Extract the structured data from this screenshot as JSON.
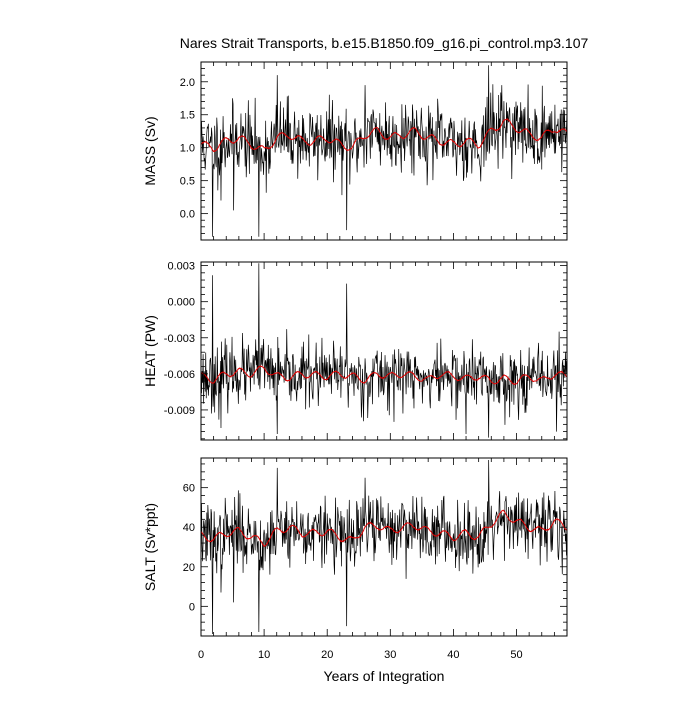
{
  "chart_data": {
    "type": "line",
    "title": "Nares Strait Transports, b.e15.B1850.f09_g16.pi_control.mp3.107",
    "xlabel": "Years of Integration",
    "xlim": [
      0,
      58
    ],
    "x_ticks": [
      0,
      10,
      20,
      30,
      40,
      50
    ],
    "x_tick_labels": [
      "0",
      "10",
      "20",
      "30",
      "40",
      "50"
    ],
    "panels": [
      {
        "ylabel": "MASS (Sv)",
        "ylim": [
          -0.4,
          2.3
        ],
        "y_ticks": [
          0.0,
          0.5,
          1.0,
          1.5,
          2.0
        ],
        "y_tick_labels": [
          "0.0",
          "0.5",
          "1.0",
          "1.5",
          "2.0"
        ],
        "smooth_anchors_x": [
          0,
          2,
          4,
          6,
          8,
          10,
          12,
          14,
          16,
          18,
          20,
          22,
          24,
          26,
          28,
          30,
          32,
          34,
          36,
          38,
          40,
          42,
          44,
          46,
          48,
          50,
          52,
          54,
          56,
          58
        ],
        "smooth_anchors_y": [
          1.05,
          1.0,
          1.1,
          1.15,
          1.05,
          0.95,
          1.15,
          1.2,
          1.1,
          1.1,
          1.15,
          1.05,
          1.0,
          1.2,
          1.25,
          1.15,
          1.2,
          1.25,
          1.15,
          1.1,
          1.05,
          1.1,
          1.05,
          1.25,
          1.4,
          1.3,
          1.2,
          1.15,
          1.3,
          1.2
        ],
        "noise_sd": 0.27,
        "spikes": [
          [
            1.8,
            -0.35
          ],
          [
            9.2,
            -0.35
          ],
          [
            12.1,
            2.1
          ],
          [
            23.1,
            -0.25
          ],
          [
            45.6,
            2.25
          ],
          [
            3.2,
            0.2
          ],
          [
            5.2,
            0.05
          ],
          [
            26.0,
            1.95
          ]
        ],
        "seed": 11
      },
      {
        "ylabel": "HEAT (PW)",
        "ylim": [
          -0.0115,
          0.0033
        ],
        "y_ticks": [
          -0.009,
          -0.006,
          -0.003,
          0.0,
          0.003
        ],
        "y_tick_labels": [
          "-0.009",
          "-0.006",
          "-0.003",
          "0.000",
          "0.003"
        ],
        "smooth_anchors_x": [
          0,
          2,
          4,
          6,
          8,
          10,
          12,
          14,
          16,
          18,
          20,
          22,
          24,
          26,
          28,
          30,
          32,
          34,
          36,
          38,
          40,
          42,
          44,
          46,
          48,
          50,
          52,
          54,
          56,
          58
        ],
        "smooth_anchors_y": [
          -0.0062,
          -0.0065,
          -0.006,
          -0.0058,
          -0.006,
          -0.0055,
          -0.0062,
          -0.0063,
          -0.006,
          -0.0061,
          -0.0062,
          -0.006,
          -0.0062,
          -0.0065,
          -0.006,
          -0.0062,
          -0.006,
          -0.0062,
          -0.0065,
          -0.006,
          -0.0062,
          -0.0064,
          -0.0062,
          -0.0066,
          -0.0064,
          -0.0066,
          -0.0062,
          -0.0066,
          -0.006,
          -0.0062
        ],
        "noise_sd": 0.0013,
        "spikes": [
          [
            1.8,
            0.0022
          ],
          [
            9.2,
            0.0032
          ],
          [
            12.1,
            -0.011
          ],
          [
            23.1,
            0.0015
          ],
          [
            45.6,
            -0.0113
          ],
          [
            3.2,
            -0.0105
          ],
          [
            42.0,
            -0.011
          ],
          [
            56.3,
            -0.0108
          ]
        ],
        "seed": 23
      },
      {
        "ylabel": "SALT (Sv*ppt)",
        "ylim": [
          -15,
          75
        ],
        "y_ticks": [
          0,
          20,
          40,
          60
        ],
        "y_tick_labels": [
          "0",
          "20",
          "40",
          "60"
        ],
        "smooth_anchors_x": [
          0,
          2,
          4,
          6,
          8,
          10,
          12,
          14,
          16,
          18,
          20,
          22,
          24,
          26,
          28,
          30,
          32,
          34,
          36,
          38,
          40,
          42,
          44,
          46,
          48,
          50,
          52,
          54,
          56,
          58
        ],
        "smooth_anchors_y": [
          36,
          34,
          37,
          38,
          35,
          32,
          38,
          40,
          37,
          37,
          38,
          35,
          33,
          40,
          41,
          38,
          40,
          41,
          38,
          37,
          35,
          37,
          35,
          42,
          47,
          43,
          40,
          38,
          43,
          40
        ],
        "noise_sd": 8.5,
        "spikes": [
          [
            1.8,
            -14
          ],
          [
            9.2,
            -13
          ],
          [
            12.1,
            70
          ],
          [
            23.1,
            -10
          ],
          [
            45.6,
            74
          ],
          [
            3.2,
            7
          ],
          [
            5.2,
            2
          ],
          [
            26.0,
            65
          ]
        ],
        "seed": 37
      }
    ],
    "series": [
      {
        "name": "",
        "color": "#000000",
        "style": "monthly",
        "samples_per_year": 12
      },
      {
        "name": "",
        "color": "#e00000",
        "style": "smoothed"
      }
    ],
    "grid": false,
    "legend": "none"
  }
}
